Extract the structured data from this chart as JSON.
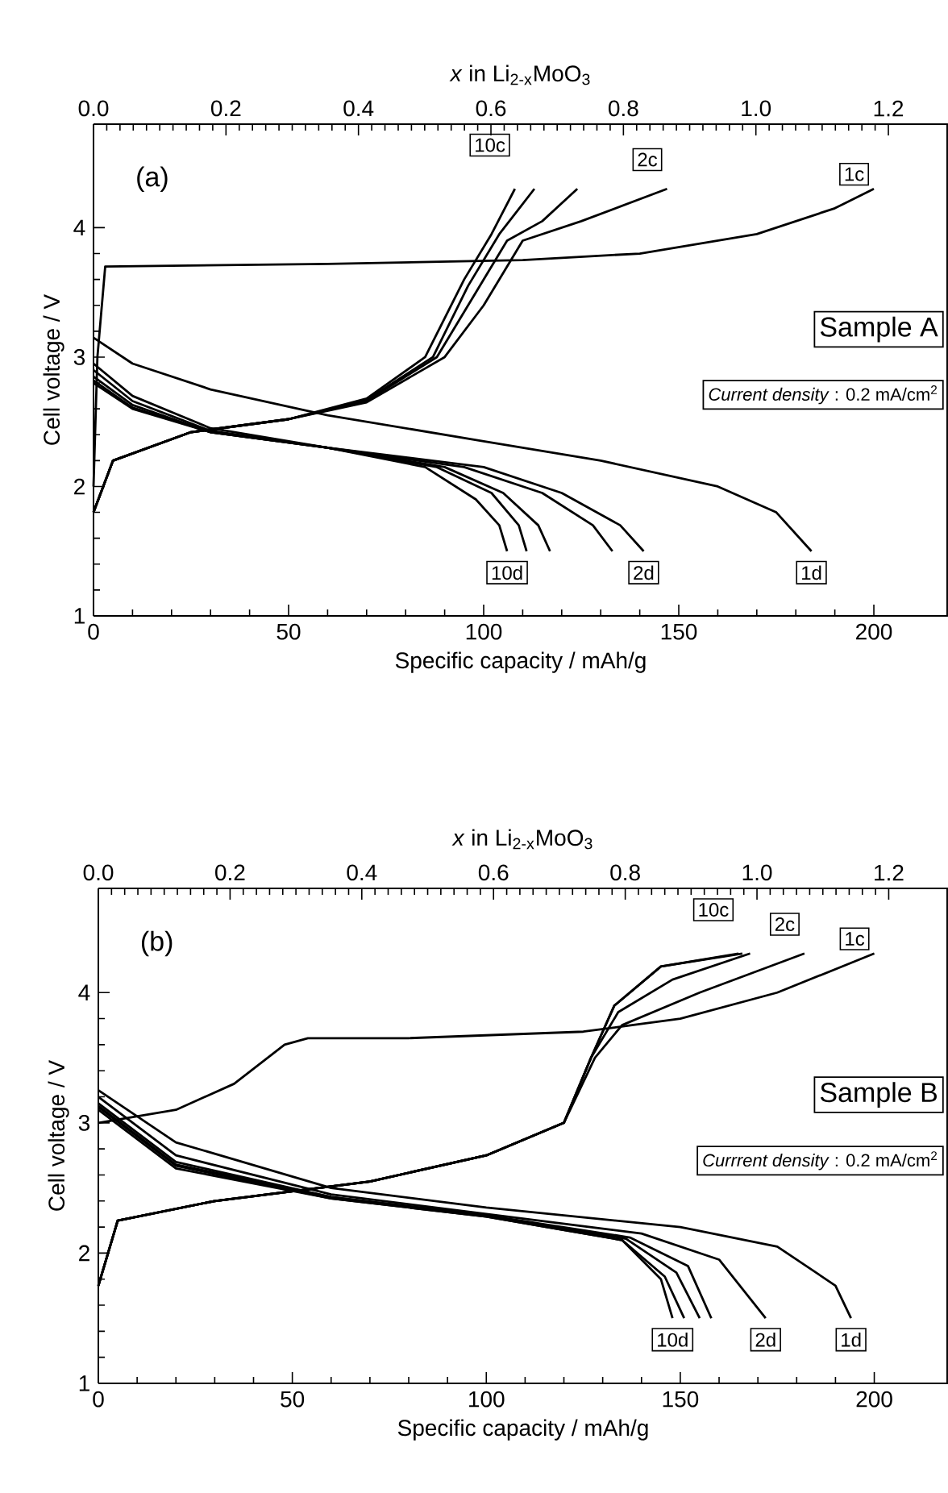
{
  "chart_data": [
    {
      "type": "line",
      "xlabel": "Specific capacity / mAh/g",
      "ylabel": "Cell voltage / V",
      "x2label": "*x*  in Li$_{2-x}$MoO$_{3}$",
      "xlim": [
        0,
        219
      ],
      "xticks": [
        0,
        50,
        100,
        150,
        200
      ],
      "ylim": [
        1,
        4.8
      ],
      "yticks": [
        1,
        2,
        3,
        4
      ],
      "x2lim": [
        0,
        1.29
      ],
      "x2ticks": [
        {
          "value": 0,
          "label": "0.0"
        },
        {
          "value": 0.2,
          "label": "0.2"
        },
        {
          "value": 0.4,
          "label": "0.4"
        },
        {
          "value": 0.6,
          "label": "0.6"
        },
        {
          "value": 0.8,
          "label": "0.8"
        },
        {
          "value": 1.0,
          "label": "1.0"
        },
        {
          "value": 1.2,
          "label": "1.2"
        }
      ],
      "line_style": "solid",
      "marker": "none",
      "legend": false,
      "annotations": [
        "(a)",
        "Sample A",
        "*Current density*  : 0.2 mA/cm$^{2}$"
      ],
      "series": [
        {
          "name": "1d",
          "color": "#000000",
          "x": [
            0,
            10,
            30,
            60,
            100,
            130,
            160,
            175,
            184
          ],
          "values": [
            3.15,
            2.95,
            2.75,
            2.55,
            2.35,
            2.2,
            2.0,
            1.8,
            1.5
          ]
        },
        {
          "name": "2d",
          "color": "#000000",
          "x": [
            0,
            10,
            30,
            60,
            100,
            120,
            135,
            141
          ],
          "values": [
            2.95,
            2.7,
            2.45,
            2.3,
            2.15,
            1.95,
            1.7,
            1.5
          ]
        },
        {
          "color": "#000000",
          "x": [
            0,
            10,
            30,
            60,
            95,
            115,
            128,
            133
          ],
          "values": [
            2.9,
            2.66,
            2.43,
            2.3,
            2.15,
            1.95,
            1.7,
            1.5
          ]
        },
        {
          "color": "#000000",
          "x": [
            0,
            10,
            30,
            60,
            90,
            105,
            114,
            117
          ],
          "values": [
            2.85,
            2.63,
            2.42,
            2.3,
            2.15,
            1.95,
            1.7,
            1.5
          ]
        },
        {
          "color": "#000000",
          "x": [
            0,
            10,
            30,
            60,
            88,
            102,
            109,
            111
          ],
          "values": [
            2.82,
            2.61,
            2.42,
            2.3,
            2.15,
            1.95,
            1.7,
            1.5
          ]
        },
        {
          "name": "10d",
          "color": "#000000",
          "x": [
            0,
            10,
            30,
            60,
            85,
            98,
            104,
            106
          ],
          "values": [
            2.8,
            2.6,
            2.42,
            2.3,
            2.15,
            1.9,
            1.7,
            1.5
          ]
        },
        {
          "name": "1c",
          "color": "#000000",
          "x": [
            0,
            1,
            3,
            60,
            110,
            140,
            170,
            190,
            200
          ],
          "values": [
            2.0,
            3.0,
            3.7,
            3.72,
            3.75,
            3.8,
            3.95,
            4.15,
            4.3
          ]
        },
        {
          "name": "2c",
          "color": "#000000",
          "x": [
            0,
            5,
            25,
            50,
            70,
            90,
            100,
            110,
            125,
            147
          ],
          "values": [
            1.8,
            2.2,
            2.42,
            2.52,
            2.65,
            3.0,
            3.4,
            3.9,
            4.05,
            4.3
          ]
        },
        {
          "color": "#000000",
          "x": [
            0,
            5,
            25,
            50,
            70,
            88,
            98,
            106,
            115,
            124
          ],
          "values": [
            1.8,
            2.2,
            2.42,
            2.52,
            2.66,
            3.0,
            3.5,
            3.9,
            4.05,
            4.3
          ]
        },
        {
          "color": "#000000",
          "x": [
            0,
            5,
            25,
            50,
            70,
            87,
            96,
            104,
            113
          ],
          "values": [
            1.8,
            2.2,
            2.42,
            2.52,
            2.67,
            3.0,
            3.55,
            3.95,
            4.3
          ]
        },
        {
          "name": "10c",
          "color": "#000000",
          "x": [
            0,
            5,
            25,
            50,
            70,
            85,
            95,
            102,
            108
          ],
          "values": [
            1.8,
            2.2,
            2.42,
            2.52,
            2.68,
            3.0,
            3.6,
            3.95,
            4.3
          ]
        }
      ]
    },
    {
      "type": "line",
      "xlabel": "Specific capacity / mAh/g",
      "ylabel": "Cell voltage / V",
      "x2label": "*x*  in Li$_{2-x}$MoO$_{3}$",
      "xlim": [
        0,
        219
      ],
      "xticks": [
        0,
        50,
        100,
        150,
        200
      ],
      "ylim": [
        1,
        4.8
      ],
      "yticks": [
        1,
        2,
        3,
        4
      ],
      "x2lim": [
        0,
        1.29
      ],
      "x2ticks": [
        {
          "value": 0,
          "label": "0.0"
        },
        {
          "value": 0.2,
          "label": "0.2"
        },
        {
          "value": 0.4,
          "label": "0.4"
        },
        {
          "value": 0.6,
          "label": "0.6"
        },
        {
          "value": 0.8,
          "label": "0.8"
        },
        {
          "value": 1.0,
          "label": "1.0"
        },
        {
          "value": 1.2,
          "label": "1.2"
        }
      ],
      "line_style": "solid",
      "marker": "none",
      "legend": false,
      "annotations": [
        "(b)",
        "Sample B",
        "*Currrent density*  : 0.2 mA/cm$^{2}$"
      ],
      "series": [
        {
          "name": "1d",
          "color": "#000000",
          "x": [
            0,
            20,
            60,
            100,
            150,
            175,
            190,
            194
          ],
          "values": [
            3.25,
            2.85,
            2.5,
            2.35,
            2.2,
            2.05,
            1.75,
            1.5
          ]
        },
        {
          "name": "2d",
          "color": "#000000",
          "x": [
            0,
            20,
            60,
            100,
            140,
            160,
            172
          ],
          "values": [
            3.2,
            2.75,
            2.45,
            2.3,
            2.15,
            1.95,
            1.5
          ]
        },
        {
          "color": "#000000",
          "x": [
            0,
            20,
            60,
            100,
            137,
            152,
            158
          ],
          "values": [
            3.15,
            2.7,
            2.43,
            2.29,
            2.12,
            1.9,
            1.5
          ]
        },
        {
          "color": "#000000",
          "x": [
            0,
            20,
            60,
            100,
            136,
            149,
            155
          ],
          "values": [
            3.13,
            2.68,
            2.43,
            2.29,
            2.11,
            1.85,
            1.5
          ]
        },
        {
          "color": "#000000",
          "x": [
            0,
            20,
            60,
            100,
            135,
            146,
            151
          ],
          "values": [
            3.12,
            2.67,
            2.42,
            2.28,
            2.1,
            1.82,
            1.5
          ]
        },
        {
          "name": "10d",
          "color": "#000000",
          "x": [
            0,
            20,
            60,
            100,
            135,
            145,
            148
          ],
          "values": [
            3.1,
            2.65,
            2.42,
            2.28,
            2.1,
            1.8,
            1.5
          ]
        },
        {
          "name": "1c",
          "color": "#000000",
          "x": [
            0,
            20,
            35,
            48,
            54,
            80,
            125,
            150,
            175,
            200
          ],
          "values": [
            3.0,
            3.1,
            3.3,
            3.6,
            3.65,
            3.65,
            3.7,
            3.8,
            4.0,
            4.3
          ]
        },
        {
          "name": "2c",
          "color": "#000000",
          "x": [
            0,
            5,
            30,
            70,
            100,
            120,
            128,
            135,
            155,
            182
          ],
          "values": [
            1.75,
            2.25,
            2.4,
            2.55,
            2.75,
            3.0,
            3.5,
            3.75,
            4.0,
            4.3
          ]
        },
        {
          "color": "#000000",
          "x": [
            0,
            5,
            30,
            70,
            100,
            120,
            127,
            134,
            148,
            168
          ],
          "values": [
            1.75,
            2.25,
            2.4,
            2.55,
            2.75,
            3.0,
            3.5,
            3.85,
            4.1,
            4.3
          ]
        },
        {
          "color": "#000000",
          "x": [
            0,
            5,
            30,
            70,
            100,
            120,
            127,
            133,
            145,
            166
          ],
          "values": [
            1.75,
            2.25,
            2.4,
            2.55,
            2.75,
            3.0,
            3.5,
            3.9,
            4.2,
            4.3
          ]
        },
        {
          "name": "10c",
          "color": "#000000",
          "x": [
            0,
            5,
            30,
            70,
            100,
            120,
            127,
            133,
            145,
            165
          ],
          "values": [
            1.75,
            2.25,
            2.4,
            2.55,
            2.75,
            3.0,
            3.5,
            3.9,
            4.2,
            4.3
          ]
        }
      ]
    }
  ]
}
